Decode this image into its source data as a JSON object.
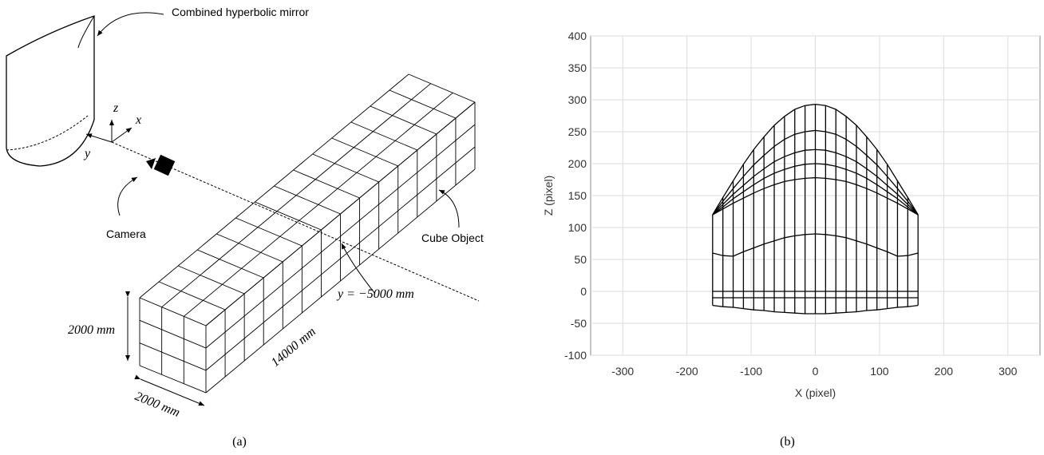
{
  "panel_a": {
    "mirror_label": "Combined hyperbolic mirror",
    "camera_label": "Camera",
    "object_label": "Cube Object",
    "axis_z": "z",
    "axis_x": "x",
    "axis_y": "y",
    "position_label": "y = −5000 mm",
    "height_label": "2000 mm",
    "width_label": "2000 mm",
    "length_label": "14000 mm",
    "caption": "(a)"
  },
  "chart_data": {
    "type": "line",
    "caption": "(b)",
    "xlabel": "X (pixel)",
    "ylabel": "Z (pixel)",
    "x": [
      -160,
      -144,
      -128,
      -112,
      -96,
      -80,
      -64,
      -48,
      -32,
      -16,
      0,
      16,
      32,
      48,
      64,
      80,
      96,
      112,
      128,
      144,
      160
    ],
    "series": [
      {
        "color": "#000000",
        "values": [
          -22,
          -24,
          -25,
          -27,
          -29,
          -30,
          -32,
          -33,
          -34,
          -35,
          -35,
          -35,
          -34,
          -33,
          -32,
          -30,
          -29,
          -27,
          -25,
          -24,
          -22
        ]
      },
      {
        "color": "#000000",
        "values": [
          -10,
          -10,
          -10,
          -10,
          -10,
          -10,
          -10,
          -10,
          -10,
          -10,
          -10,
          -10,
          -10,
          -10,
          -10,
          -10,
          -10,
          -10,
          -10,
          -10,
          -10
        ]
      },
      {
        "color": "#000000",
        "values": [
          0,
          0,
          0,
          0,
          0,
          0,
          0,
          0,
          0,
          0,
          0,
          0,
          0,
          0,
          0,
          0,
          0,
          0,
          0,
          0,
          0
        ]
      },
      {
        "color": "#000000",
        "values": [
          60,
          56,
          55,
          62,
          68,
          74,
          79,
          84,
          87,
          89,
          90,
          89,
          87,
          84,
          79,
          74,
          68,
          62,
          55,
          56,
          60
        ]
      },
      {
        "color": "#000000",
        "values": [
          120,
          129,
          138,
          146,
          154,
          161,
          167,
          172,
          175,
          177,
          178,
          177,
          175,
          172,
          167,
          161,
          154,
          146,
          138,
          129,
          120
        ]
      },
      {
        "color": "#000000",
        "values": [
          120,
          132,
          145,
          156,
          167,
          177,
          185,
          191,
          196,
          199,
          200,
          199,
          196,
          191,
          185,
          177,
          167,
          156,
          145,
          132,
          120
        ]
      },
      {
        "color": "#000000",
        "values": [
          120,
          136,
          152,
          166,
          180,
          192,
          203,
          211,
          217,
          221,
          222,
          221,
          217,
          211,
          203,
          192,
          180,
          166,
          152,
          136,
          120
        ]
      },
      {
        "color": "#000000",
        "values": [
          120,
          141,
          161,
          180,
          198,
          213,
          227,
          238,
          246,
          250,
          252,
          250,
          246,
          238,
          227,
          213,
          198,
          180,
          161,
          141,
          120
        ]
      },
      {
        "color": "#000000",
        "values": [
          120,
          147,
          173,
          199,
          222,
          242,
          260,
          274,
          285,
          291,
          293,
          291,
          285,
          274,
          260,
          242,
          222,
          199,
          173,
          147,
          120
        ]
      }
    ],
    "xlim": [
      -350,
      350
    ],
    "ylim": [
      -100,
      400
    ],
    "xticks": [
      -300,
      -200,
      -100,
      0,
      100,
      200,
      300
    ],
    "yticks": [
      -100,
      -50,
      0,
      50,
      100,
      150,
      200,
      250,
      300,
      350,
      400
    ],
    "grid": true
  }
}
